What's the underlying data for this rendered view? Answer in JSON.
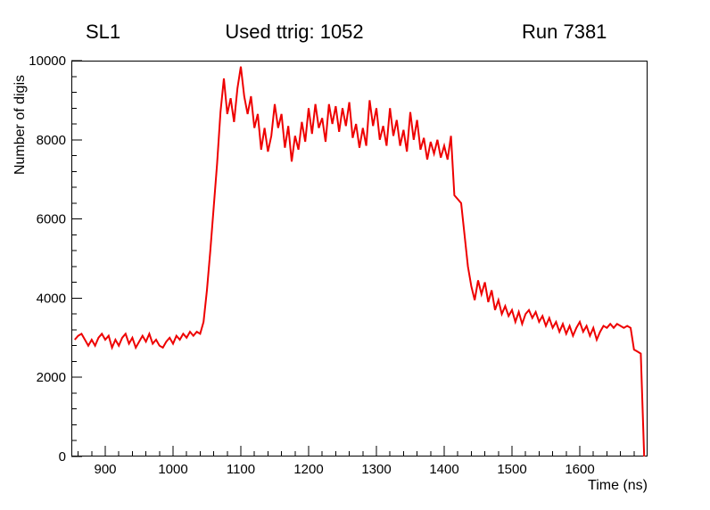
{
  "chart_data": {
    "type": "line",
    "title": "Used ttrig: 1052",
    "header_left": "SL1",
    "header_right": "Run 7381",
    "xlabel": "Time (ns)",
    "ylabel": "Number of digis",
    "xlim": [
      850,
      1700
    ],
    "ylim": [
      0,
      10000
    ],
    "x_ticks": [
      900,
      1000,
      1100,
      1200,
      1300,
      1400,
      1500,
      1600
    ],
    "y_ticks": [
      0,
      2000,
      4000,
      6000,
      8000,
      10000
    ],
    "x_minor_step": 20,
    "y_minor_step": 400,
    "grid": false,
    "legend": "none",
    "line_color": "#ee0000",
    "background_color": "#ffffff",
    "x_start": 855,
    "x_step": 5,
    "values": [
      2950,
      3050,
      3100,
      2950,
      2800,
      2950,
      2800,
      3000,
      3100,
      2950,
      3050,
      2750,
      2950,
      2800,
      3000,
      3100,
      2850,
      3000,
      2750,
      2900,
      3050,
      2900,
      3100,
      2850,
      2950,
      2800,
      2750,
      2900,
      3000,
      2850,
      3050,
      2950,
      3100,
      3000,
      3150,
      3050,
      3150,
      3100,
      3400,
      4200,
      5200,
      6300,
      7400,
      8700,
      9550,
      8650,
      9050,
      8450,
      9300,
      9850,
      9100,
      8650,
      9100,
      8300,
      8650,
      7750,
      8300,
      7700,
      8100,
      8900,
      8300,
      8650,
      7800,
      8350,
      7450,
      8100,
      7750,
      8450,
      7950,
      8800,
      8150,
      8900,
      8300,
      8550,
      7950,
      8900,
      8400,
      8850,
      8200,
      8800,
      8350,
      8950,
      8050,
      8400,
      7800,
      8300,
      7850,
      9000,
      8350,
      8800,
      8000,
      8350,
      7850,
      8800,
      8100,
      8500,
      7850,
      8250,
      7700,
      8700,
      8000,
      8500,
      7750,
      8050,
      7500,
      7950,
      7650,
      8000,
      7550,
      7850,
      7500,
      8100,
      6600,
      6500,
      6400,
      5600,
      4800,
      4300,
      3950,
      4450,
      4100,
      4400,
      3900,
      4200,
      3700,
      3950,
      3600,
      3800,
      3550,
      3700,
      3400,
      3650,
      3350,
      3600,
      3700,
      3500,
      3650,
      3400,
      3550,
      3300,
      3500,
      3250,
      3400,
      3150,
      3350,
      3100,
      3300,
      3050,
      3250,
      3400,
      3150,
      3300,
      3050,
      3250,
      2950,
      3150,
      3300,
      3250,
      3350,
      3250,
      3350,
      3300,
      3250,
      3300,
      3250,
      2700,
      2650,
      2600,
      0
    ]
  }
}
